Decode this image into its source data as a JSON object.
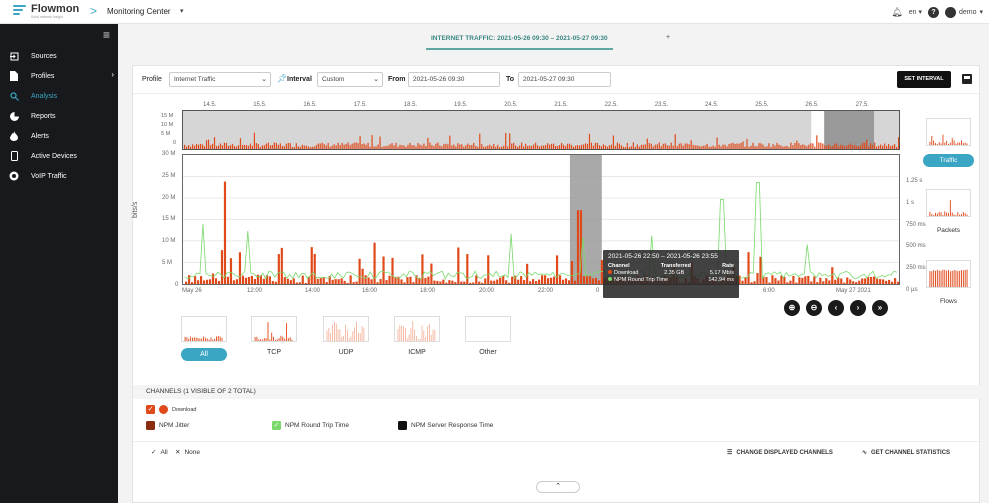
{
  "brand": {
    "name": "Flowmon",
    "tagline": "Solid network insight",
    "accent": "#3aa6c4"
  },
  "breadcrumb": {
    "separator": ">",
    "title": "Monitoring Center"
  },
  "topbar": {
    "language": "en",
    "user": "demo"
  },
  "sidebar": {
    "items": [
      {
        "label": "Sources",
        "icon": "sign-in-icon"
      },
      {
        "label": "Profiles",
        "icon": "document-icon"
      },
      {
        "label": "Analysis",
        "icon": "search-icon",
        "active": true
      },
      {
        "label": "Reports",
        "icon": "pie-chart-icon"
      },
      {
        "label": "Alerts",
        "icon": "flame-icon"
      },
      {
        "label": "Active Devices",
        "icon": "mobile-icon"
      },
      {
        "label": "VoIP Traffic",
        "icon": "headset-icon"
      }
    ]
  },
  "tab": {
    "label": "INTERNET TRAFFIC: 2021-05-26 09:30 – 2021-05-27 09:30",
    "add": "+"
  },
  "controls": {
    "profile_label": "Profile",
    "profile_value": "Internet Traffic",
    "interval_label": "Interval",
    "interval_value": "Custom",
    "from_label": "From",
    "from_value": "2021-05-26 09:30",
    "to_label": "To",
    "to_value": "2021-05-27 09:30",
    "set_interval": "SET INTERVAL"
  },
  "overview": {
    "dates": [
      "14.5.",
      "15.5.",
      "16.5.",
      "17.5.",
      "18.5.",
      "19.5.",
      "20.5.",
      "21.5.",
      "22.5.",
      "23.5.",
      "24.5.",
      "25.5.",
      "26.5.",
      "27.5."
    ],
    "y_ticks": [
      "15 M",
      "10 M",
      "5 M",
      "0"
    ]
  },
  "main_chart": {
    "y_label": "bits/s",
    "y_ticks_left": [
      "30 M",
      "25 M",
      "20 M",
      "15 M",
      "10 M",
      "5 M",
      "0"
    ],
    "y_ticks_right": [
      "1.25 s",
      "1 s",
      "750 ms",
      "500 ms",
      "250 ms",
      "0 µs"
    ],
    "x_ticks": [
      "May 26",
      "12:00",
      "14:00",
      "16:00",
      "18:00",
      "20:00",
      "22:00",
      "0",
      "6:00",
      "May 27 2021"
    ]
  },
  "tooltip": {
    "title": "2021-05-26 22:50 – 2021-05-26 23:55",
    "headers": [
      "Channel",
      "Transferred",
      "Rate"
    ],
    "rows": [
      {
        "channel": "Download",
        "transferred": "2.35 GB",
        "rate": "5.17 Mb/s",
        "color": "#e04a1b"
      },
      {
        "channel": "NPM Round Trip Time",
        "transferred": "",
        "rate": "142.94 ms",
        "color": "#79d96b"
      }
    ]
  },
  "zoom_controls": [
    "⊕",
    "⊖",
    "‹",
    "›",
    "»"
  ],
  "side_panels": [
    {
      "label": "Traffic",
      "active": true
    },
    {
      "label": "Packets"
    },
    {
      "label": "Flows"
    }
  ],
  "protocols": [
    {
      "label": "All",
      "active": true
    },
    {
      "label": "TCP"
    },
    {
      "label": "UDP"
    },
    {
      "label": "ICMP"
    },
    {
      "label": "Other"
    }
  ],
  "channels": {
    "header": "CHANNELS (1 VISIBLE OF 2 TOTAL)",
    "download": "Download",
    "npm_jitter": "NPM Jitter",
    "npm_rtt": "NPM Round Trip Time",
    "npm_srt": "NPM Server Response Time",
    "all": "All",
    "none": "None",
    "change": "CHANGE DISPLAYED CHANNELS",
    "stats": "GET CHANNEL STATISTICS"
  },
  "colors": {
    "download": "#e04a1b",
    "jitter": "#8a2c10",
    "rtt": "#79d96b",
    "srt": "#111111"
  }
}
